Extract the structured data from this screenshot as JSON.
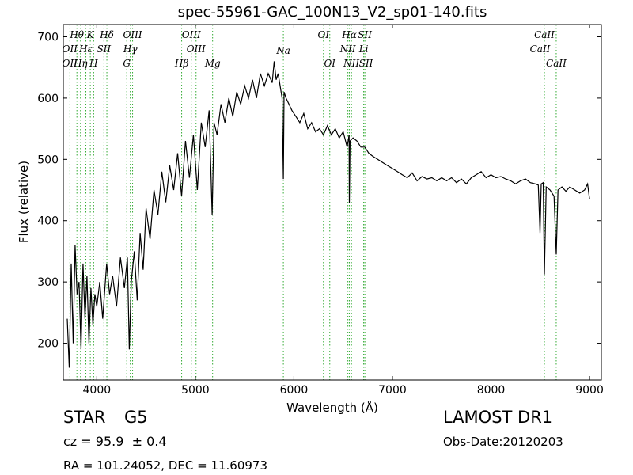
{
  "header": {
    "title": "spec-55961-GAC_100N13_V2_sp01-140.fits"
  },
  "footer": {
    "class_label": "STAR",
    "subclass_label": "G5",
    "cz_text": "cz = 95.9  ± 0.4",
    "coords_text": "RA = 101.24052, DEC = 11.60973",
    "survey_text": "LAMOST DR1",
    "obs_date_text": "Obs-Date:20120203"
  },
  "colors": {
    "spectrum": "#000000",
    "lines": "#33aa33",
    "axes": "#000000"
  },
  "chart_data": {
    "type": "line",
    "title": "spec-55961-GAC_100N13_V2_sp01-140.fits",
    "xlabel": "Wavelength (Å)",
    "ylabel": "Flux (relative)",
    "xlim": [
      3660,
      9120
    ],
    "ylim": [
      140,
      720
    ],
    "xticks": [
      4000,
      5000,
      6000,
      7000,
      8000,
      9000
    ],
    "yticks": [
      200,
      300,
      400,
      500,
      600,
      700
    ],
    "grid": false,
    "series": [
      {
        "x": [
          3700,
          3720,
          3740,
          3760,
          3780,
          3800,
          3820,
          3840,
          3860,
          3880,
          3900,
          3920,
          3940,
          3960,
          3980,
          4000,
          4030,
          4060,
          4100,
          4130,
          4160,
          4200,
          4240,
          4280,
          4310,
          4330,
          4350,
          4380,
          4410,
          4440,
          4470,
          4500,
          4540,
          4580,
          4620,
          4660,
          4700,
          4740,
          4780,
          4820,
          4860,
          4900,
          4940,
          4980,
          5020,
          5060,
          5100,
          5140,
          5170,
          5190,
          5220,
          5260,
          5300,
          5340,
          5380,
          5420,
          5460,
          5500,
          5540,
          5580,
          5620,
          5660,
          5700,
          5740,
          5780,
          5800,
          5820,
          5840,
          5860,
          5880,
          5893,
          5900,
          5920,
          5950,
          5980,
          6020,
          6060,
          6100,
          6140,
          6180,
          6220,
          6260,
          6300,
          6340,
          6380,
          6420,
          6460,
          6500,
          6540,
          6560,
          6563,
          6570,
          6600,
          6640,
          6680,
          6720,
          6760,
          6800,
          6850,
          6900,
          6950,
          7000,
          7050,
          7100,
          7150,
          7200,
          7250,
          7300,
          7350,
          7400,
          7450,
          7500,
          7550,
          7600,
          7650,
          7700,
          7750,
          7800,
          7850,
          7900,
          7950,
          8000,
          8050,
          8100,
          8150,
          8200,
          8250,
          8300,
          8350,
          8400,
          8450,
          8480,
          8498,
          8510,
          8530,
          8542,
          8560,
          8600,
          8640,
          8662,
          8680,
          8720,
          8760,
          8800,
          8850,
          8900,
          8950,
          8980,
          9000
        ],
        "y": [
          240,
          160,
          330,
          200,
          360,
          280,
          300,
          190,
          330,
          240,
          310,
          200,
          290,
          230,
          280,
          260,
          300,
          240,
          330,
          280,
          310,
          260,
          340,
          290,
          340,
          190,
          300,
          350,
          270,
          380,
          320,
          420,
          370,
          450,
          410,
          480,
          430,
          490,
          450,
          510,
          440,
          530,
          470,
          540,
          450,
          560,
          520,
          580,
          410,
          560,
          540,
          590,
          560,
          600,
          570,
          610,
          590,
          620,
          600,
          630,
          600,
          640,
          620,
          640,
          625,
          660,
          630,
          640,
          620,
          600,
          468,
          610,
          600,
          590,
          580,
          570,
          560,
          575,
          550,
          560,
          545,
          550,
          540,
          555,
          540,
          550,
          535,
          545,
          520,
          540,
          428,
          530,
          535,
          530,
          520,
          520,
          510,
          505,
          500,
          495,
          490,
          485,
          480,
          475,
          470,
          478,
          465,
          472,
          468,
          470,
          465,
          470,
          465,
          470,
          462,
          468,
          460,
          470,
          475,
          480,
          470,
          475,
          470,
          472,
          468,
          465,
          460,
          465,
          468,
          462,
          460,
          458,
          380,
          460,
          462,
          312,
          455,
          450,
          440,
          345,
          450,
          455,
          448,
          455,
          450,
          445,
          450,
          460,
          435
        ]
      }
    ],
    "annotations": [
      {
        "label": "Hθ",
        "x": 3798,
        "row": 0
      },
      {
        "label": "K",
        "x": 3934,
        "row": 0
      },
      {
        "label": "Hδ",
        "x": 4102,
        "row": 0
      },
      {
        "label": "OIII",
        "x": 4363,
        "row": 0
      },
      {
        "label": "OIII",
        "x": 4959,
        "row": 0
      },
      {
        "label": "OI",
        "x": 6300,
        "row": 0
      },
      {
        "label": "Hα",
        "x": 6563,
        "row": 0
      },
      {
        "label": "SII",
        "x": 6720,
        "row": 0
      },
      {
        "label": "CaII",
        "x": 8542,
        "row": 0
      },
      {
        "label": "OII",
        "x": 3727,
        "row": 1
      },
      {
        "label": "Hε",
        "x": 3889,
        "row": 1
      },
      {
        "label": "SII",
        "x": 4072,
        "row": 1
      },
      {
        "label": "Hγ",
        "x": 4340,
        "row": 1
      },
      {
        "label": "OIII",
        "x": 5007,
        "row": 1
      },
      {
        "label": "NII",
        "x": 6548,
        "row": 1
      },
      {
        "label": "Li",
        "x": 6708,
        "row": 1
      },
      {
        "label": "CaII",
        "x": 8498,
        "row": 1
      },
      {
        "label": "OII",
        "x": 3727,
        "row": 2
      },
      {
        "label": "Hη",
        "x": 3835,
        "row": 2
      },
      {
        "label": "H",
        "x": 3968,
        "row": 2
      },
      {
        "label": "G",
        "x": 4304,
        "row": 2
      },
      {
        "label": "Hβ",
        "x": 4861,
        "row": 2
      },
      {
        "label": "Mg",
        "x": 5175,
        "row": 2
      },
      {
        "label": "Na",
        "x": 5893,
        "row": 3
      },
      {
        "label": "OI",
        "x": 6364,
        "row": 2
      },
      {
        "label": "NII",
        "x": 6584,
        "row": 2
      },
      {
        "label": "SII",
        "x": 6731,
        "row": 2
      },
      {
        "label": "CaII",
        "x": 8662,
        "row": 2
      }
    ]
  }
}
